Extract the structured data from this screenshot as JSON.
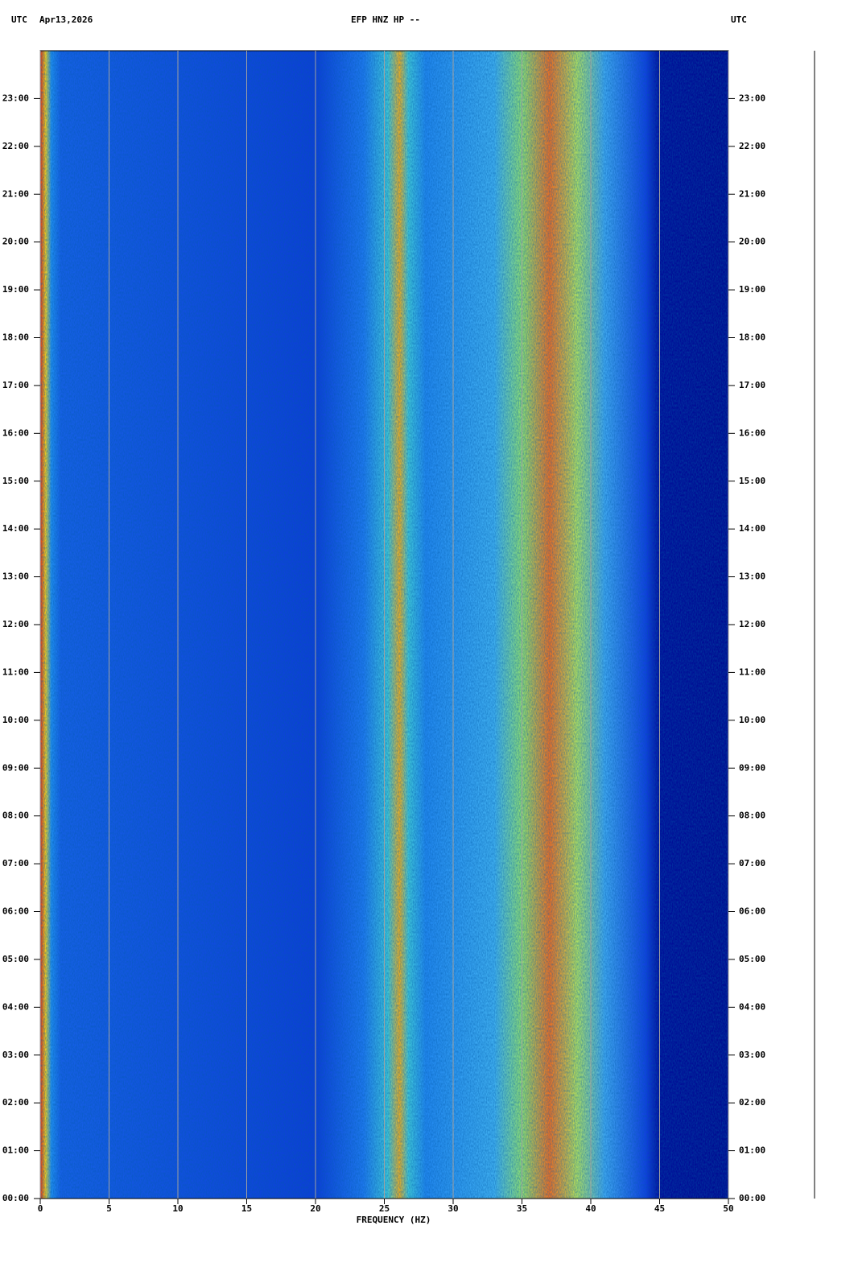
{
  "chart_data": {
    "type": "spectrogram",
    "title_left": "UTC",
    "date": "Apr13,2026",
    "title": "EFP HNZ HP --",
    "title_right": "UTC",
    "xlabel": "FREQUENCY (HZ)",
    "xlim": [
      0,
      50
    ],
    "xticks": [
      0,
      5,
      10,
      15,
      20,
      25,
      30,
      35,
      40,
      45,
      50
    ],
    "ylim": [
      0,
      24
    ],
    "yticks": [
      {
        "value": 0,
        "label": "00:00"
      },
      {
        "value": 1,
        "label": "01:00"
      },
      {
        "value": 2,
        "label": "02:00"
      },
      {
        "value": 3,
        "label": "03:00"
      },
      {
        "value": 4,
        "label": "04:00"
      },
      {
        "value": 5,
        "label": "05:00"
      },
      {
        "value": 6,
        "label": "06:00"
      },
      {
        "value": 7,
        "label": "07:00"
      },
      {
        "value": 8,
        "label": "08:00"
      },
      {
        "value": 9,
        "label": "09:00"
      },
      {
        "value": 10,
        "label": "10:00"
      },
      {
        "value": 11,
        "label": "11:00"
      },
      {
        "value": 12,
        "label": "12:00"
      },
      {
        "value": 13,
        "label": "13:00"
      },
      {
        "value": 14,
        "label": "14:00"
      },
      {
        "value": 15,
        "label": "15:00"
      },
      {
        "value": 16,
        "label": "16:00"
      },
      {
        "value": 17,
        "label": "17:00"
      },
      {
        "value": 18,
        "label": "18:00"
      },
      {
        "value": 19,
        "label": "19:00"
      },
      {
        "value": 20,
        "label": "20:00"
      },
      {
        "value": 21,
        "label": "21:00"
      },
      {
        "value": 22,
        "label": "22:00"
      },
      {
        "value": 23,
        "label": "23:00"
      }
    ],
    "grid": true
  }
}
